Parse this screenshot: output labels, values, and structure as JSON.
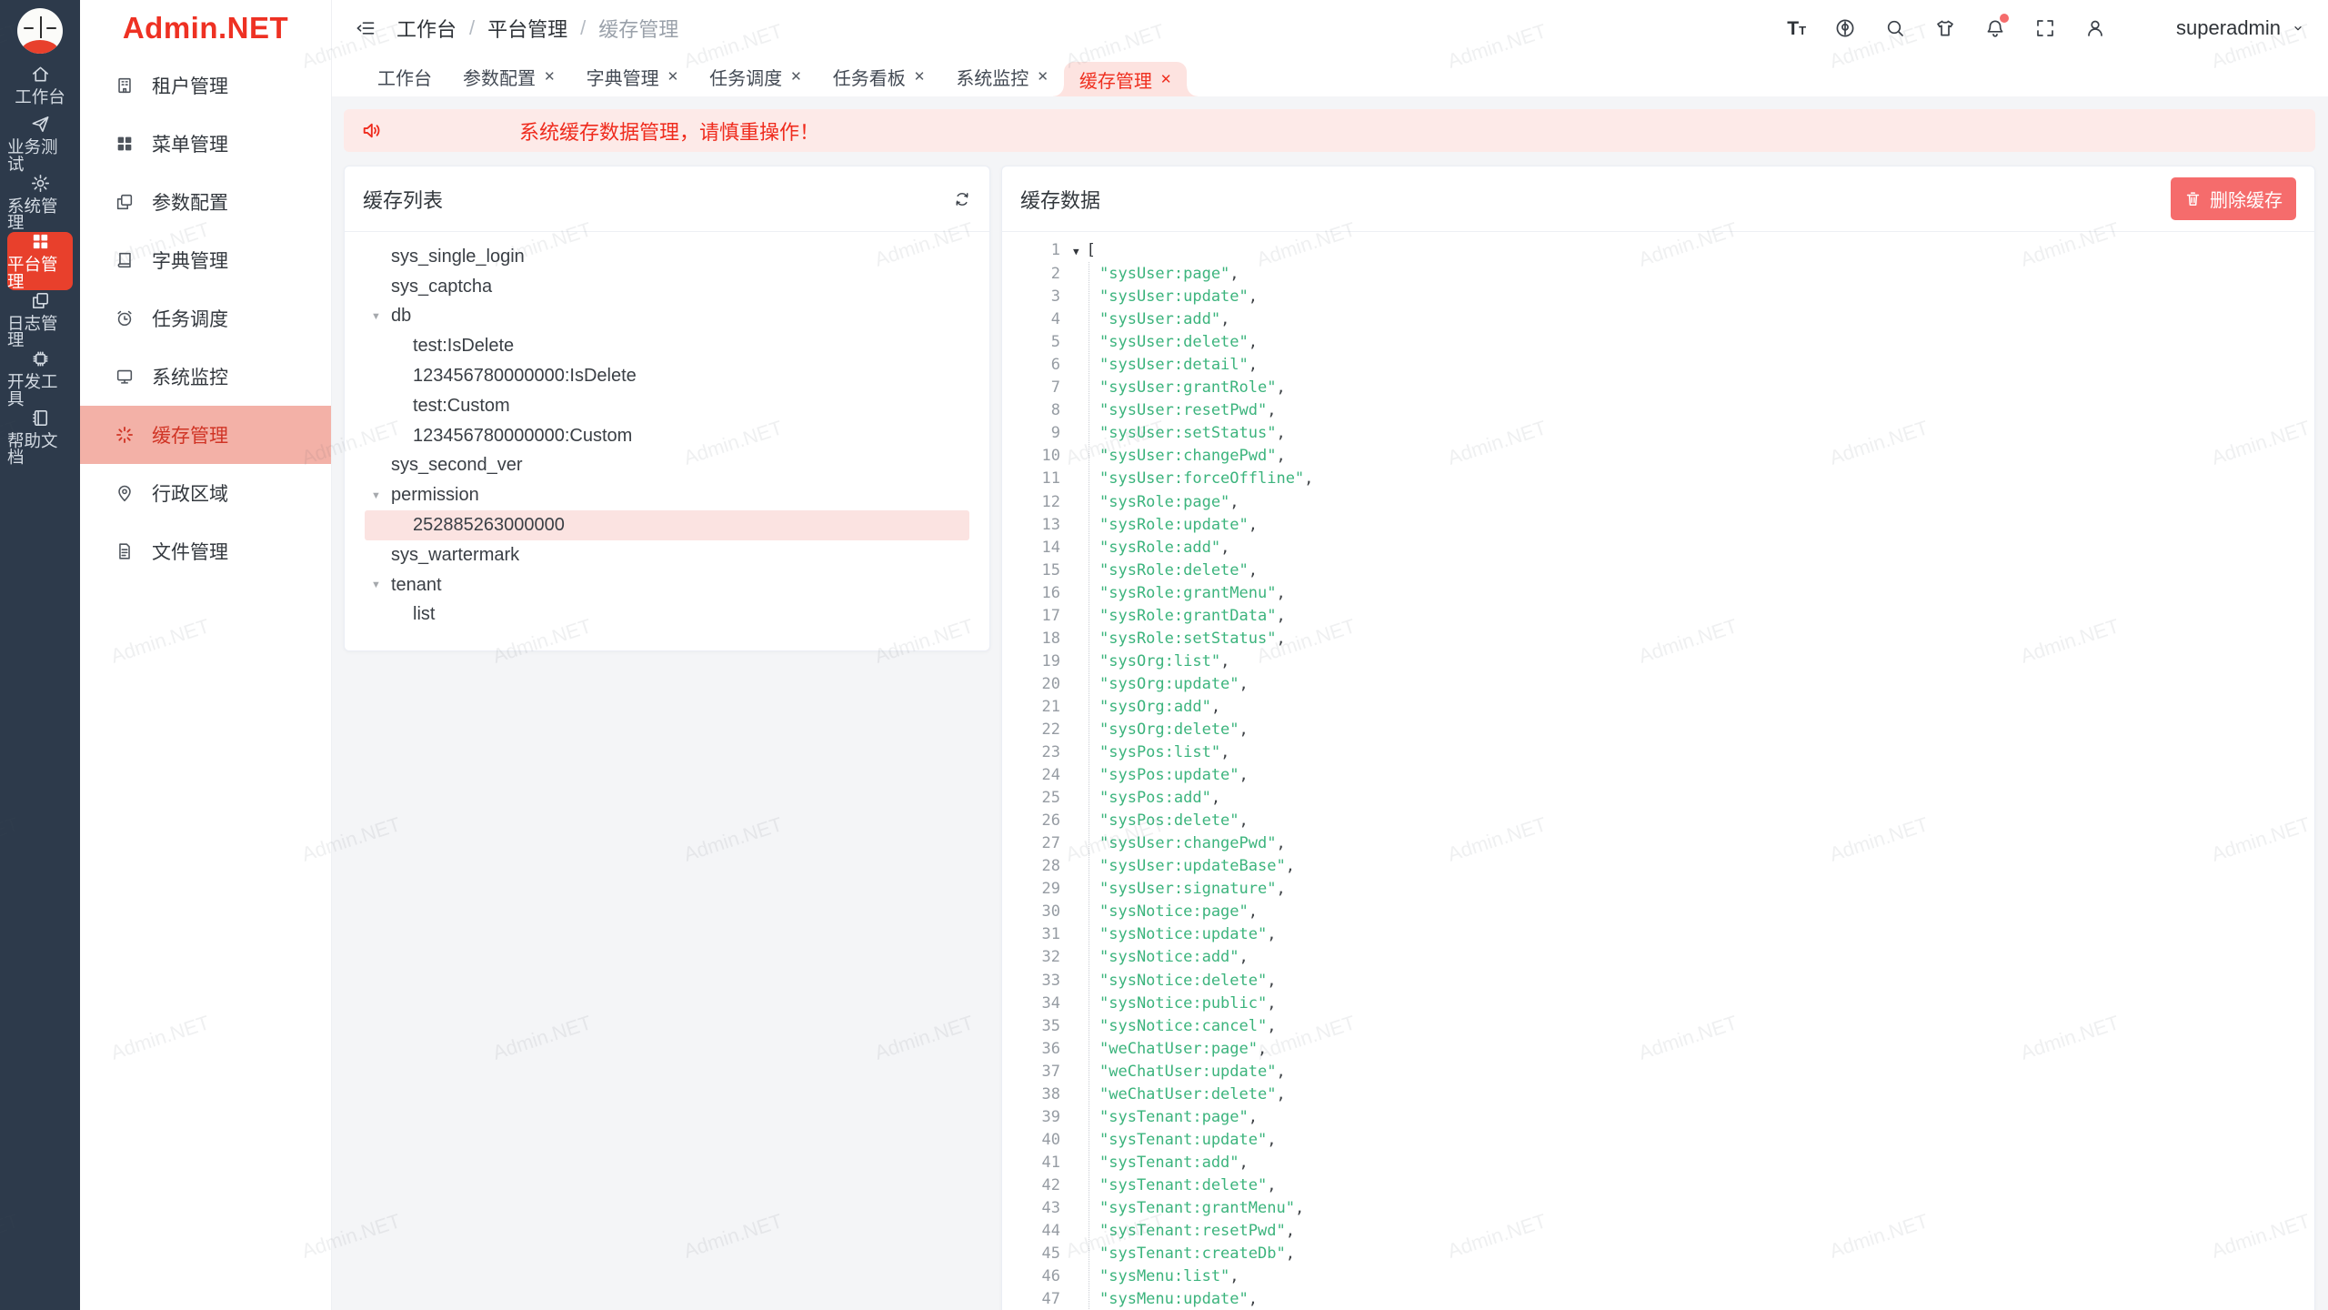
{
  "watermark": {
    "text": "Admin.NET"
  },
  "brand": {
    "logo_text": "Admin.NET",
    "accent_red": "#e8402c",
    "logo_red": "#ee3123"
  },
  "rail": {
    "items": [
      {
        "key": "workbench",
        "label": "工作台",
        "icon": "home-icon",
        "active": false
      },
      {
        "key": "business-test",
        "label": "业务测试",
        "icon": "paper-plane-icon",
        "active": false
      },
      {
        "key": "system-management",
        "label": "系统管理",
        "icon": "gear-icon",
        "active": false
      },
      {
        "key": "platform-management",
        "label": "平台管理",
        "icon": "grid-icon",
        "active": true
      },
      {
        "key": "log-management",
        "label": "日志管理",
        "icon": "copy-icon",
        "active": false
      },
      {
        "key": "dev-tools",
        "label": "开发工具",
        "icon": "chip-icon",
        "active": false
      },
      {
        "key": "help-docs",
        "label": "帮助文档",
        "icon": "notebook-icon",
        "active": false
      }
    ]
  },
  "sidebar": {
    "items": [
      {
        "key": "tenant",
        "label": "租户管理",
        "icon": "building-icon",
        "active": false
      },
      {
        "key": "menu",
        "label": "菜单管理",
        "icon": "grid-icon",
        "active": false
      },
      {
        "key": "config",
        "label": "参数配置",
        "icon": "copy-icon",
        "active": false
      },
      {
        "key": "dict",
        "label": "字典管理",
        "icon": "dictionary-icon",
        "active": false
      },
      {
        "key": "job",
        "label": "任务调度",
        "icon": "alarm-clock-icon",
        "active": false
      },
      {
        "key": "monitor",
        "label": "系统监控",
        "icon": "monitor-icon",
        "active": false
      },
      {
        "key": "cache",
        "label": "缓存管理",
        "icon": "loading-icon",
        "active": true
      },
      {
        "key": "region",
        "label": "行政区域",
        "icon": "location-icon",
        "active": false
      },
      {
        "key": "file",
        "label": "文件管理",
        "icon": "document-icon",
        "active": false
      }
    ]
  },
  "header": {
    "fold_icon": "fold-menu-icon",
    "breadcrumb": [
      "工作台",
      "平台管理",
      "缓存管理"
    ],
    "icons": [
      "font-size-icon",
      "language-icon",
      "search-icon",
      "theme-icon",
      "bell-icon",
      "fullscreen-icon",
      "user-icon"
    ],
    "bell_badge_dot": true,
    "username": "superadmin"
  },
  "tabs": [
    {
      "key": "workbench",
      "label": "工作台",
      "closable": false,
      "active": false
    },
    {
      "key": "config",
      "label": "参数配置",
      "closable": true,
      "active": false
    },
    {
      "key": "dict",
      "label": "字典管理",
      "closable": true,
      "active": false
    },
    {
      "key": "job",
      "label": "任务调度",
      "closable": true,
      "active": false
    },
    {
      "key": "job-board",
      "label": "任务看板",
      "closable": true,
      "active": false
    },
    {
      "key": "monitor",
      "label": "系统监控",
      "closable": true,
      "active": false
    },
    {
      "key": "cache",
      "label": "缓存管理",
      "closable": true,
      "active": true
    }
  ],
  "alert": {
    "text": "系统缓存数据管理，请慎重操作！"
  },
  "cache_list_panel": {
    "title": "缓存列表",
    "tree": [
      {
        "label": "sys_single_login",
        "level": 0,
        "expandable": false,
        "selected": false
      },
      {
        "label": "sys_captcha",
        "level": 0,
        "expandable": false,
        "selected": false
      },
      {
        "label": "db",
        "level": 0,
        "expandable": true,
        "selected": false
      },
      {
        "label": "test:IsDelete",
        "level": 1,
        "expandable": false,
        "selected": false
      },
      {
        "label": "123456780000000:IsDelete",
        "level": 1,
        "expandable": false,
        "selected": false
      },
      {
        "label": "test:Custom",
        "level": 1,
        "expandable": false,
        "selected": false
      },
      {
        "label": "123456780000000:Custom",
        "level": 1,
        "expandable": false,
        "selected": false
      },
      {
        "label": "sys_second_ver",
        "level": 0,
        "expandable": false,
        "selected": false
      },
      {
        "label": "permission",
        "level": 0,
        "expandable": true,
        "selected": false
      },
      {
        "label": "252885263000000",
        "level": 1,
        "expandable": false,
        "selected": true
      },
      {
        "label": "sys_wartermark",
        "level": 0,
        "expandable": false,
        "selected": false
      },
      {
        "label": "tenant",
        "level": 0,
        "expandable": true,
        "selected": false
      },
      {
        "label": "list",
        "level": 1,
        "expandable": false,
        "selected": false
      }
    ]
  },
  "cache_data_panel": {
    "title": "缓存数据",
    "delete_button_label": "删除缓存",
    "open_bracket": "[",
    "json_values": [
      "sysUser:page",
      "sysUser:update",
      "sysUser:add",
      "sysUser:delete",
      "sysUser:detail",
      "sysUser:grantRole",
      "sysUser:resetPwd",
      "sysUser:setStatus",
      "sysUser:changePwd",
      "sysUser:forceOffline",
      "sysRole:page",
      "sysRole:update",
      "sysRole:add",
      "sysRole:delete",
      "sysRole:grantMenu",
      "sysRole:grantData",
      "sysRole:setStatus",
      "sysOrg:list",
      "sysOrg:update",
      "sysOrg:add",
      "sysOrg:delete",
      "sysPos:list",
      "sysPos:update",
      "sysPos:add",
      "sysPos:delete",
      "sysUser:changePwd",
      "sysUser:updateBase",
      "sysUser:signature",
      "sysNotice:page",
      "sysNotice:update",
      "sysNotice:add",
      "sysNotice:delete",
      "sysNotice:public",
      "sysNotice:cancel",
      "weChatUser:page",
      "weChatUser:update",
      "weChatUser:delete",
      "sysTenant:page",
      "sysTenant:update",
      "sysTenant:add",
      "sysTenant:delete",
      "sysTenant:grantMenu",
      "sysTenant:resetPwd",
      "sysTenant:createDb",
      "sysMenu:list",
      "sysMenu:update"
    ]
  },
  "colors": {
    "string_green": "#3cb47d",
    "danger_button": "#f56c6c",
    "active_tab_bg": "#fde3e0",
    "alert_bg": "#fdeae8",
    "rail_bg": "#2d3a4b",
    "sidebar_active_bg": "#f3b1a7"
  }
}
